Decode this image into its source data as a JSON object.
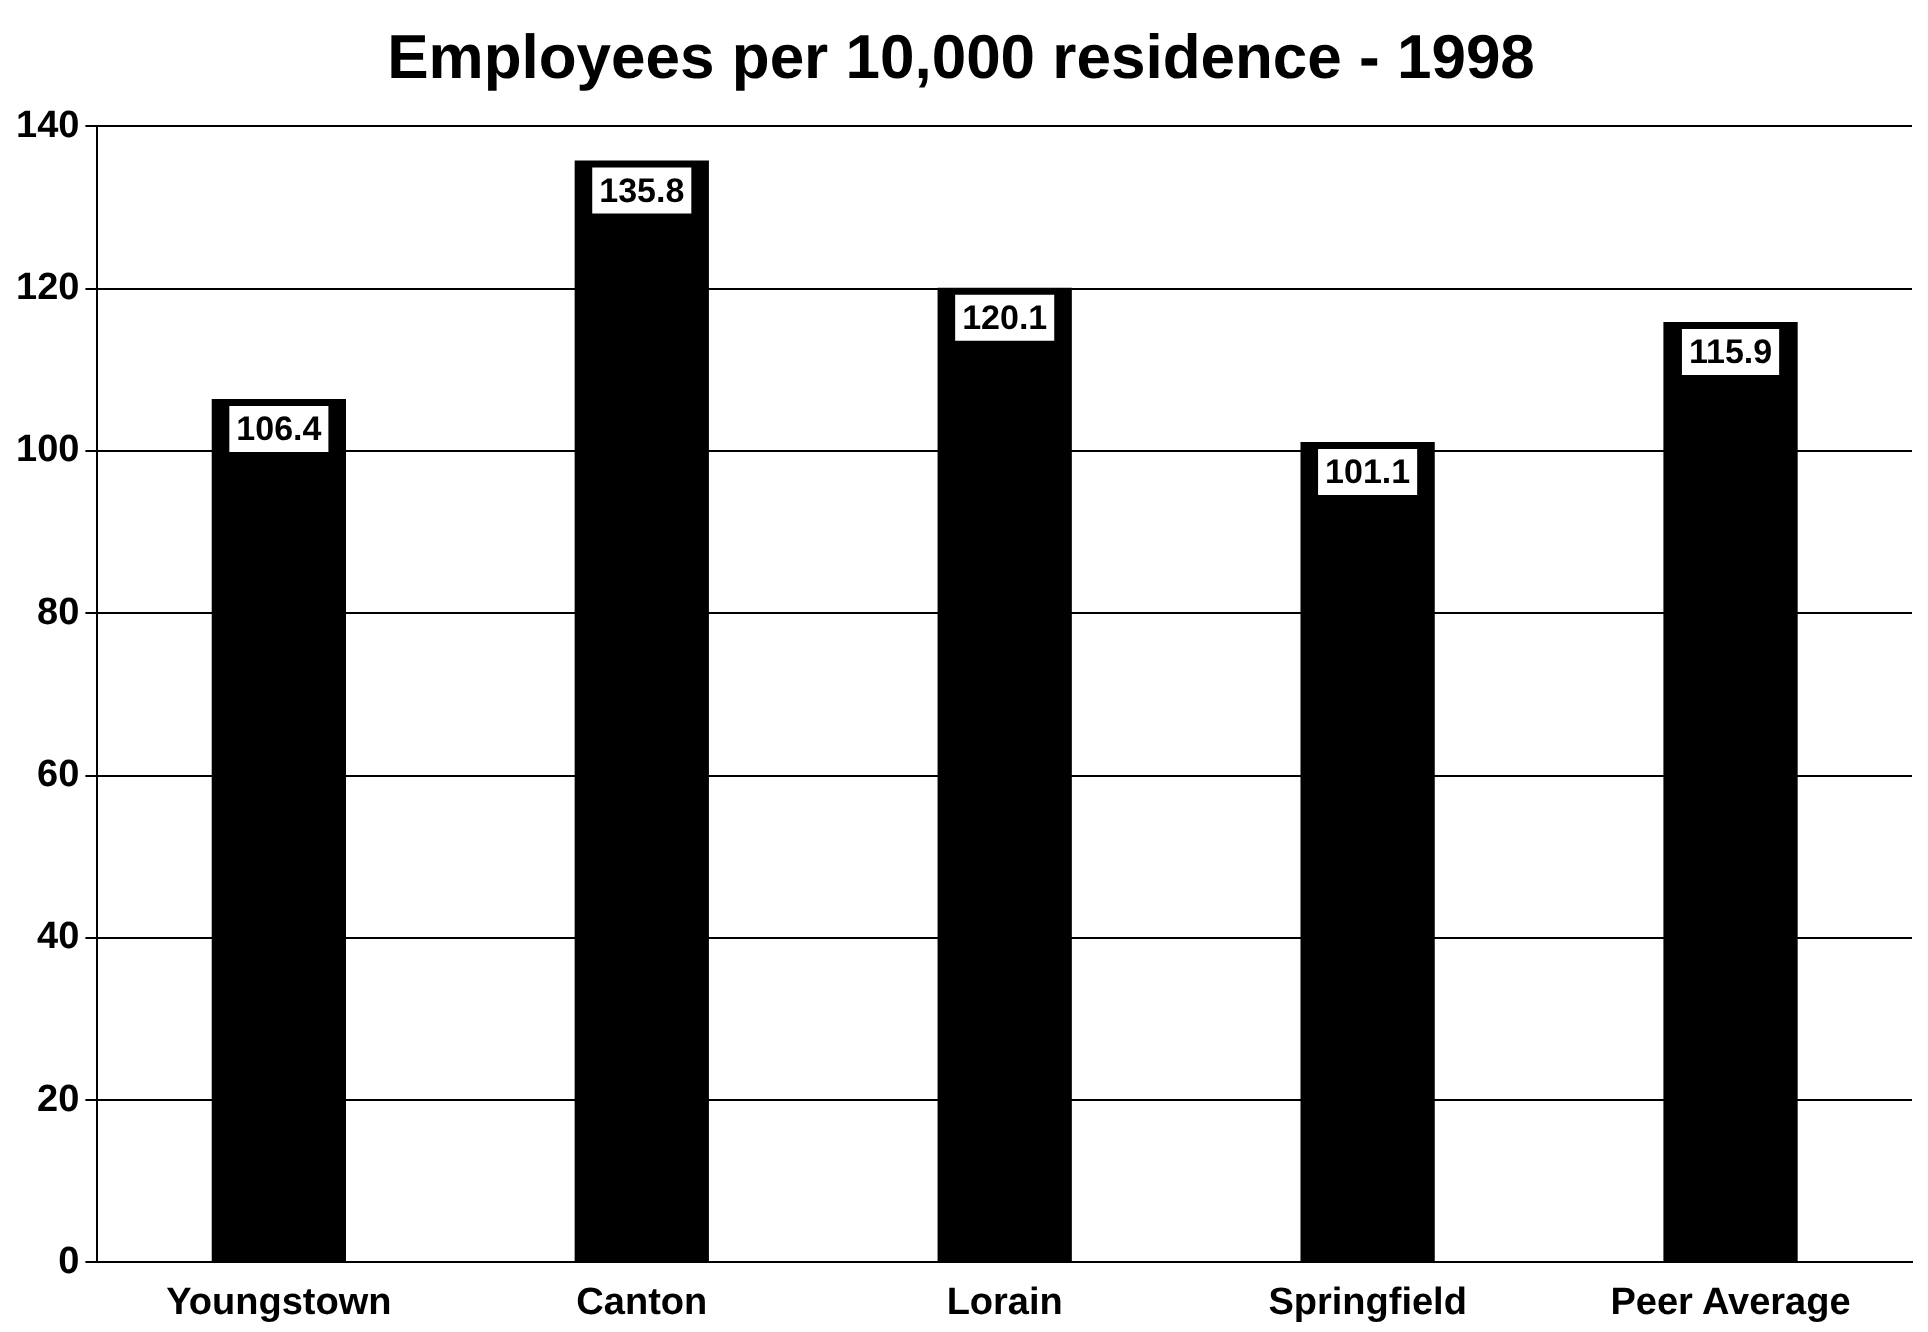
{
  "chart_data": {
    "type": "bar",
    "title": "Employees per 10,000 residence - 1998",
    "categories": [
      "Youngstown",
      "Canton",
      "Lorain",
      "Springfield",
      "Peer Average"
    ],
    "values": [
      106.4,
      135.8,
      120.1,
      101.1,
      115.9
    ],
    "color": "#000000",
    "ylim": [
      0,
      140
    ],
    "yticks": [
      0,
      20,
      40,
      60,
      80,
      100,
      120,
      140
    ],
    "grid": "y",
    "data_labels": true
  }
}
